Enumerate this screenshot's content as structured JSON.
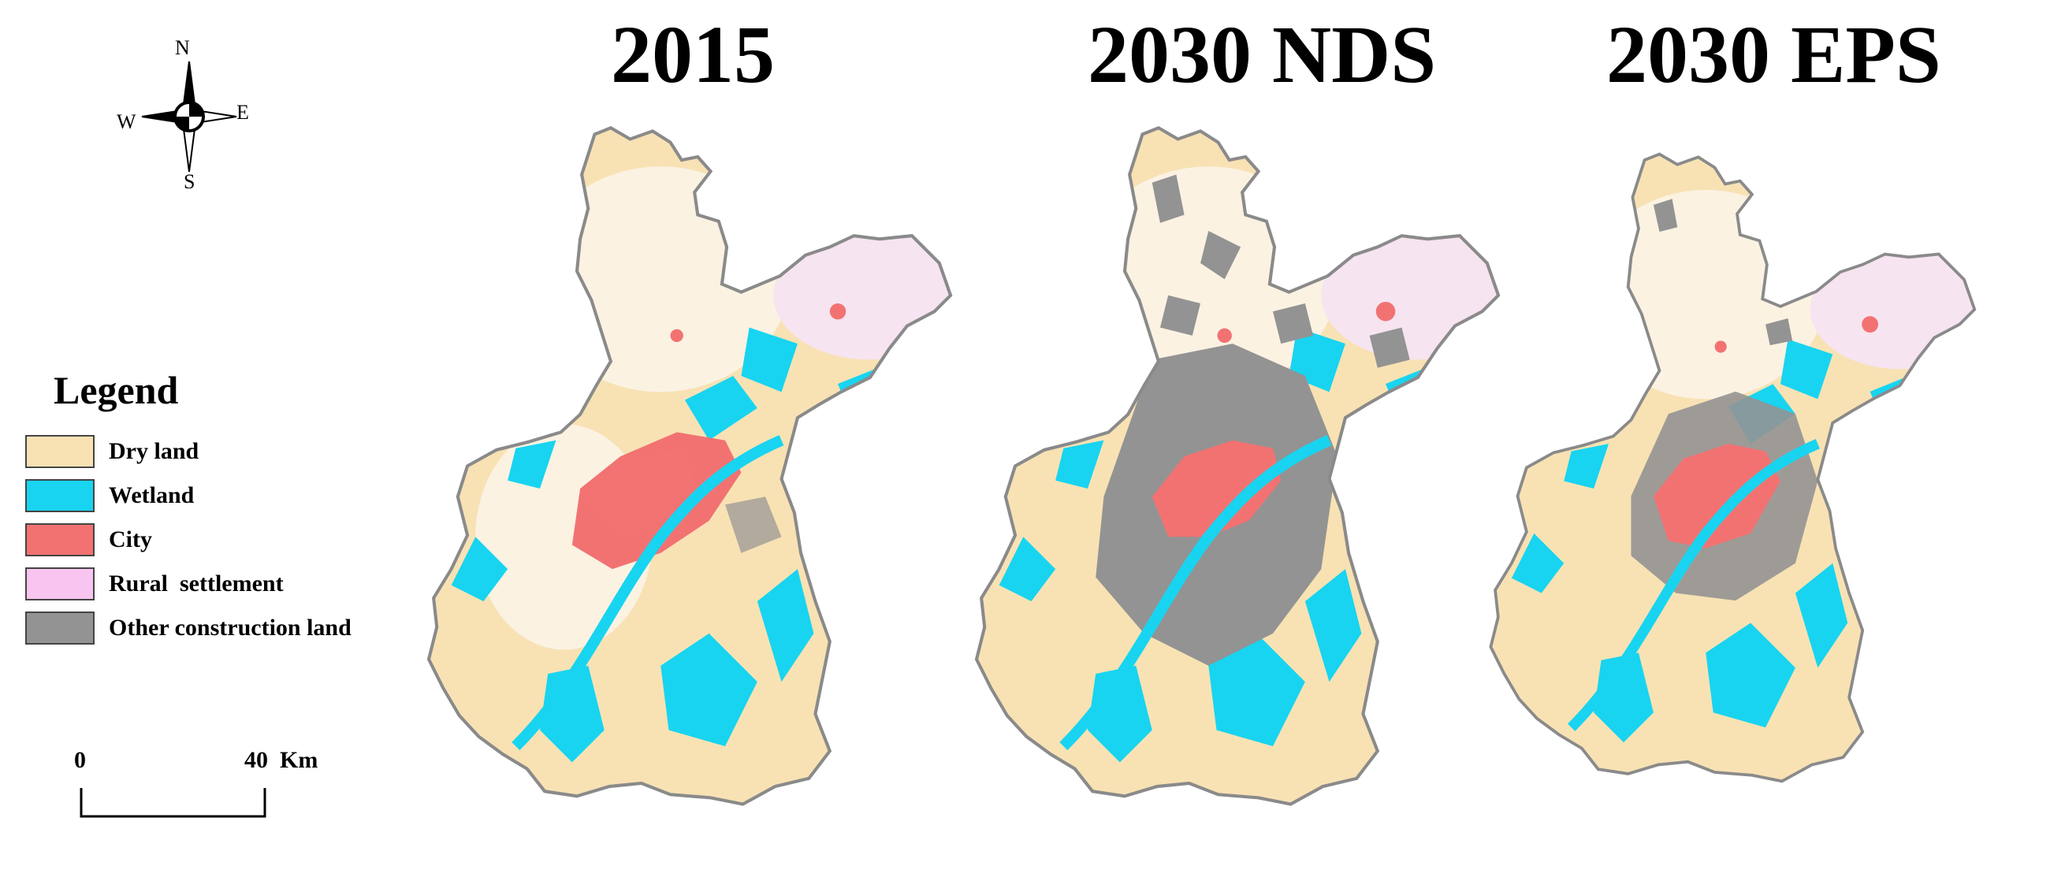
{
  "maps": [
    {
      "title": "2015"
    },
    {
      "title": "2030 NDS"
    },
    {
      "title": "2030 EPS"
    }
  ],
  "compass": {
    "n": "N",
    "s": "S",
    "e": "E",
    "w": "W"
  },
  "legend": {
    "title": "Legend",
    "items": [
      {
        "label": "Dry land",
        "color": "#f8e2b4"
      },
      {
        "label": "Wetland",
        "color": "#18d4f0"
      },
      {
        "label": "City",
        "color": "#f27272"
      },
      {
        "label": "Rural  settlement",
        "color": "#f8c4f0"
      },
      {
        "label": "Other construction land",
        "color": "#939393"
      }
    ]
  },
  "scale": {
    "start": "0",
    "end": "40  Km"
  }
}
